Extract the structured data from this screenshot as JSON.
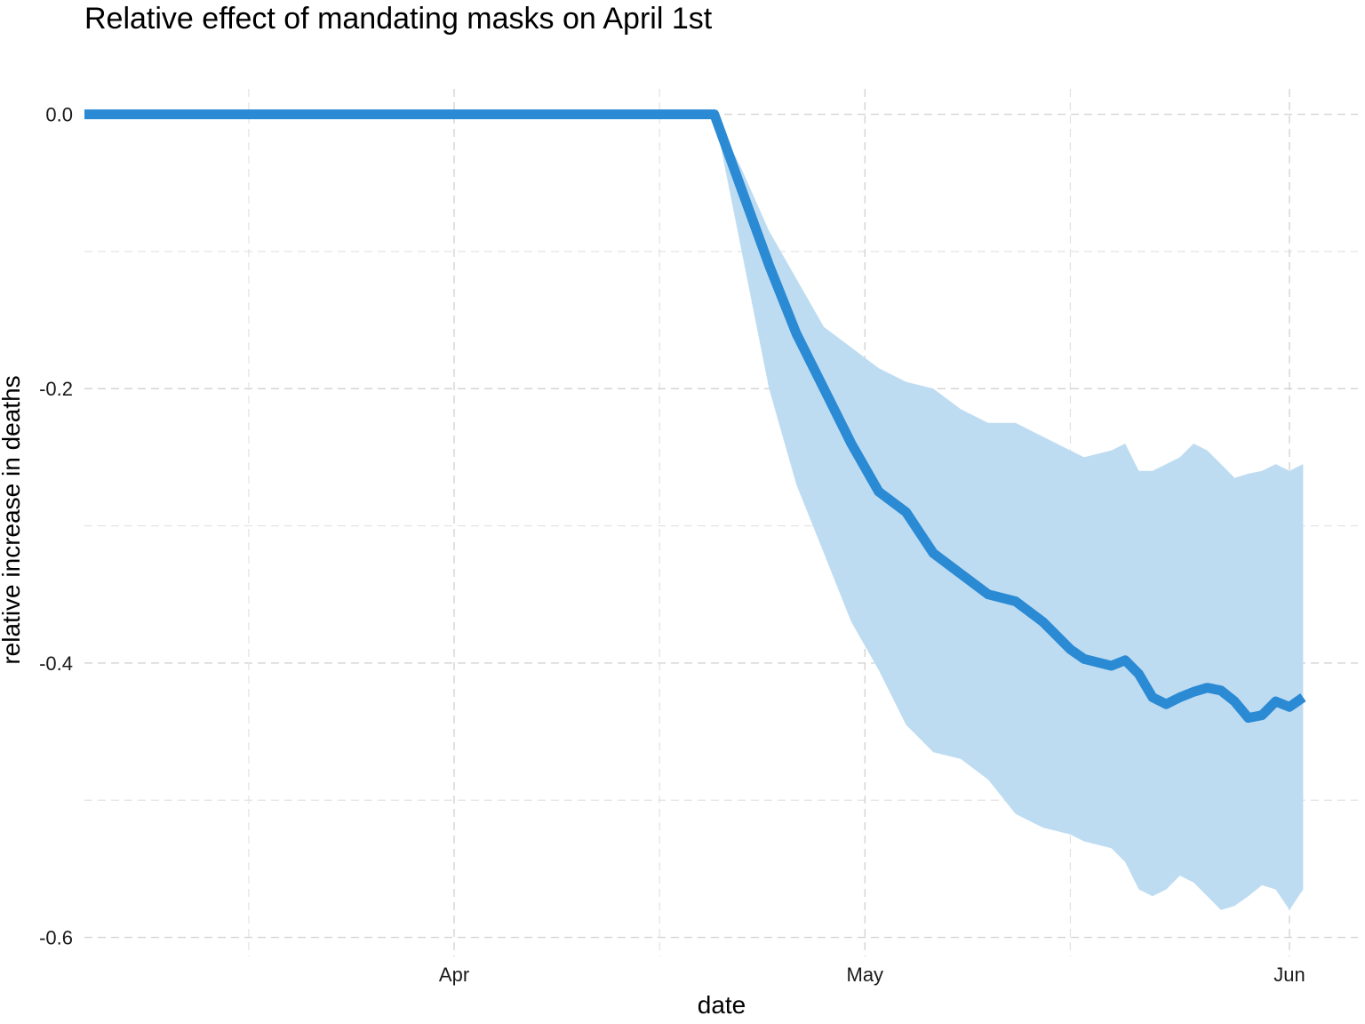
{
  "chart_data": {
    "type": "line",
    "title": "Relative effect of mandating masks on April 1st",
    "xlabel": "date",
    "ylabel": "relative increase in deaths",
    "x_tick_labels": [
      "Apr",
      "May",
      "Jun"
    ],
    "x_tick_dates": [
      "2020-04-01",
      "2020-05-01",
      "2020-06-01"
    ],
    "y_ticks": [
      0.0,
      -0.2,
      -0.4,
      -0.6
    ],
    "y_tick_labels": [
      "0.0",
      "-0.2",
      "-0.4",
      "-0.6"
    ],
    "xlim": [
      "2020-03-05",
      "2020-06-06"
    ],
    "ylim": [
      -0.61,
      0.025
    ],
    "grid": true,
    "colors": {
      "line": "#2b8ad4",
      "ribbon": "#bedcf1"
    },
    "series": [
      {
        "x": [
          "2020-03-05",
          "2020-04-20",
          "2020-04-22",
          "2020-04-24",
          "2020-04-26",
          "2020-04-28",
          "2020-04-30",
          "2020-05-02",
          "2020-05-04",
          "2020-05-06",
          "2020-05-08",
          "2020-05-10",
          "2020-05-12",
          "2020-05-14",
          "2020-05-16",
          "2020-05-17",
          "2020-05-19",
          "2020-05-20",
          "2020-05-21",
          "2020-05-22",
          "2020-05-23",
          "2020-05-24",
          "2020-05-25",
          "2020-05-26",
          "2020-05-27",
          "2020-05-28",
          "2020-05-29",
          "2020-05-30",
          "2020-05-31",
          "2020-06-01",
          "2020-06-02"
        ],
        "y": [
          0.0,
          0.0,
          -0.055,
          -0.11,
          -0.16,
          -0.2,
          -0.24,
          -0.275,
          -0.29,
          -0.32,
          -0.335,
          -0.35,
          -0.355,
          -0.37,
          -0.39,
          -0.397,
          -0.402,
          -0.398,
          -0.408,
          -0.425,
          -0.43,
          -0.425,
          -0.421,
          -0.418,
          -0.42,
          -0.428,
          -0.44,
          -0.438,
          -0.428,
          -0.432,
          -0.425
        ],
        "lower": [
          0.0,
          0.0,
          -0.1,
          -0.2,
          -0.27,
          -0.32,
          -0.37,
          -0.405,
          -0.445,
          -0.465,
          -0.47,
          -0.485,
          -0.51,
          -0.52,
          -0.525,
          -0.53,
          -0.535,
          -0.545,
          -0.565,
          -0.57,
          -0.565,
          -0.555,
          -0.56,
          -0.57,
          -0.58,
          -0.577,
          -0.57,
          -0.562,
          -0.565,
          -0.58,
          -0.565
        ],
        "upper": [
          0.0,
          0.0,
          -0.04,
          -0.085,
          -0.12,
          -0.155,
          -0.17,
          -0.185,
          -0.195,
          -0.2,
          -0.215,
          -0.225,
          -0.225,
          -0.235,
          -0.245,
          -0.25,
          -0.245,
          -0.24,
          -0.26,
          -0.26,
          -0.255,
          -0.25,
          -0.24,
          -0.245,
          -0.255,
          -0.265,
          -0.262,
          -0.26,
          -0.255,
          -0.26,
          -0.255
        ]
      }
    ]
  }
}
